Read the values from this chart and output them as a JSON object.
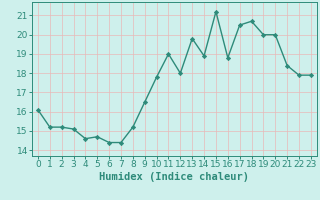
{
  "x": [
    0,
    1,
    2,
    3,
    4,
    5,
    6,
    7,
    8,
    9,
    10,
    11,
    12,
    13,
    14,
    15,
    16,
    17,
    18,
    19,
    20,
    21,
    22,
    23
  ],
  "y": [
    16.1,
    15.2,
    15.2,
    15.1,
    14.6,
    14.7,
    14.4,
    14.4,
    15.2,
    16.5,
    17.8,
    19.0,
    18.0,
    19.8,
    18.9,
    21.2,
    18.8,
    20.5,
    20.7,
    20.0,
    20.0,
    18.4,
    17.9,
    17.9
  ],
  "line_color": "#2e8b7a",
  "marker": "D",
  "marker_size": 2.2,
  "bg_color": "#cef0ec",
  "grid_color": "#e8b8b8",
  "xlabel": "Humidex (Indice chaleur)",
  "ylim": [
    13.7,
    21.7
  ],
  "xlim": [
    -0.5,
    23.5
  ],
  "yticks": [
    14,
    15,
    16,
    17,
    18,
    19,
    20,
    21
  ],
  "xticks": [
    0,
    1,
    2,
    3,
    4,
    5,
    6,
    7,
    8,
    9,
    10,
    11,
    12,
    13,
    14,
    15,
    16,
    17,
    18,
    19,
    20,
    21,
    22,
    23
  ],
  "tick_label_size": 6.5,
  "xlabel_size": 7.5,
  "line_width": 1.0,
  "spine_color": "#2e8b7a"
}
